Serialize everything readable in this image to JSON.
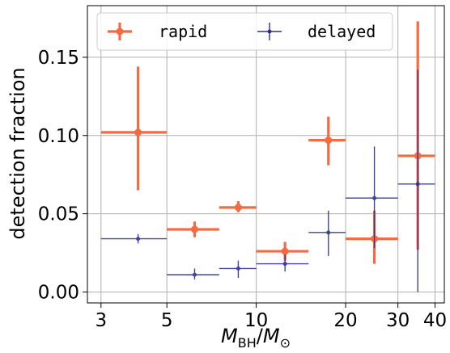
{
  "chart_data": {
    "type": "scatter",
    "xscale": "log",
    "xlim": [
      2.7,
      43
    ],
    "ylim": [
      -0.007,
      0.183
    ],
    "xticks": [
      3,
      5,
      10,
      20,
      30,
      40
    ],
    "xtick_labels": [
      "3",
      "5",
      "10",
      "20",
      "30",
      "40"
    ],
    "yticks": [
      0.0,
      0.05,
      0.1,
      0.15
    ],
    "ytick_labels": [
      "0.00",
      "0.05",
      "0.10",
      "0.15"
    ],
    "xlabel": {
      "main": "M",
      "sub1": "BH",
      "slash": "/",
      "main2": "M",
      "sub2": "⊙"
    },
    "ylabel": "detection fraction",
    "grid": true,
    "legend_position": "top",
    "series": [
      {
        "name": "rapid",
        "color": "#f26b43",
        "points": [
          {
            "x": 4.0,
            "xlo": 3.0,
            "xhi": 5.0,
            "y": 0.102,
            "ylo": 0.065,
            "yhi": 0.144
          },
          {
            "x": 6.2,
            "xlo": 5.0,
            "xhi": 7.5,
            "y": 0.04,
            "ylo": 0.035,
            "yhi": 0.045
          },
          {
            "x": 8.7,
            "xlo": 7.5,
            "xhi": 10.0,
            "y": 0.054,
            "ylo": 0.051,
            "yhi": 0.058
          },
          {
            "x": 12.5,
            "xlo": 10.0,
            "xhi": 15.0,
            "y": 0.026,
            "ylo": 0.02,
            "yhi": 0.032
          },
          {
            "x": 17.5,
            "xlo": 15.0,
            "xhi": 20.0,
            "y": 0.097,
            "ylo": 0.081,
            "yhi": 0.112
          },
          {
            "x": 25.0,
            "xlo": 20.0,
            "xhi": 30.0,
            "y": 0.034,
            "ylo": 0.018,
            "yhi": 0.052
          },
          {
            "x": 35.0,
            "xlo": 30.0,
            "xhi": 40.0,
            "y": 0.087,
            "ylo": 0.027,
            "yhi": 0.173
          }
        ]
      },
      {
        "name": "delayed",
        "color": "#2d2f8f",
        "points": [
          {
            "x": 4.0,
            "xlo": 3.0,
            "xhi": 5.0,
            "y": 0.034,
            "ylo": 0.031,
            "yhi": 0.037
          },
          {
            "x": 6.2,
            "xlo": 5.0,
            "xhi": 7.5,
            "y": 0.011,
            "ylo": 0.008,
            "yhi": 0.015
          },
          {
            "x": 8.7,
            "xlo": 7.5,
            "xhi": 10.0,
            "y": 0.015,
            "ylo": 0.009,
            "yhi": 0.02
          },
          {
            "x": 12.5,
            "xlo": 10.0,
            "xhi": 15.0,
            "y": 0.018,
            "ylo": 0.013,
            "yhi": 0.024
          },
          {
            "x": 17.5,
            "xlo": 15.0,
            "xhi": 20.0,
            "y": 0.038,
            "ylo": 0.023,
            "yhi": 0.052
          },
          {
            "x": 25.0,
            "xlo": 20.0,
            "xhi": 30.0,
            "y": 0.06,
            "ylo": 0.028,
            "yhi": 0.093
          },
          {
            "x": 35.0,
            "xlo": 30.0,
            "xhi": 40.0,
            "y": 0.069,
            "ylo": 0.0,
            "yhi": 0.142
          }
        ]
      }
    ]
  }
}
